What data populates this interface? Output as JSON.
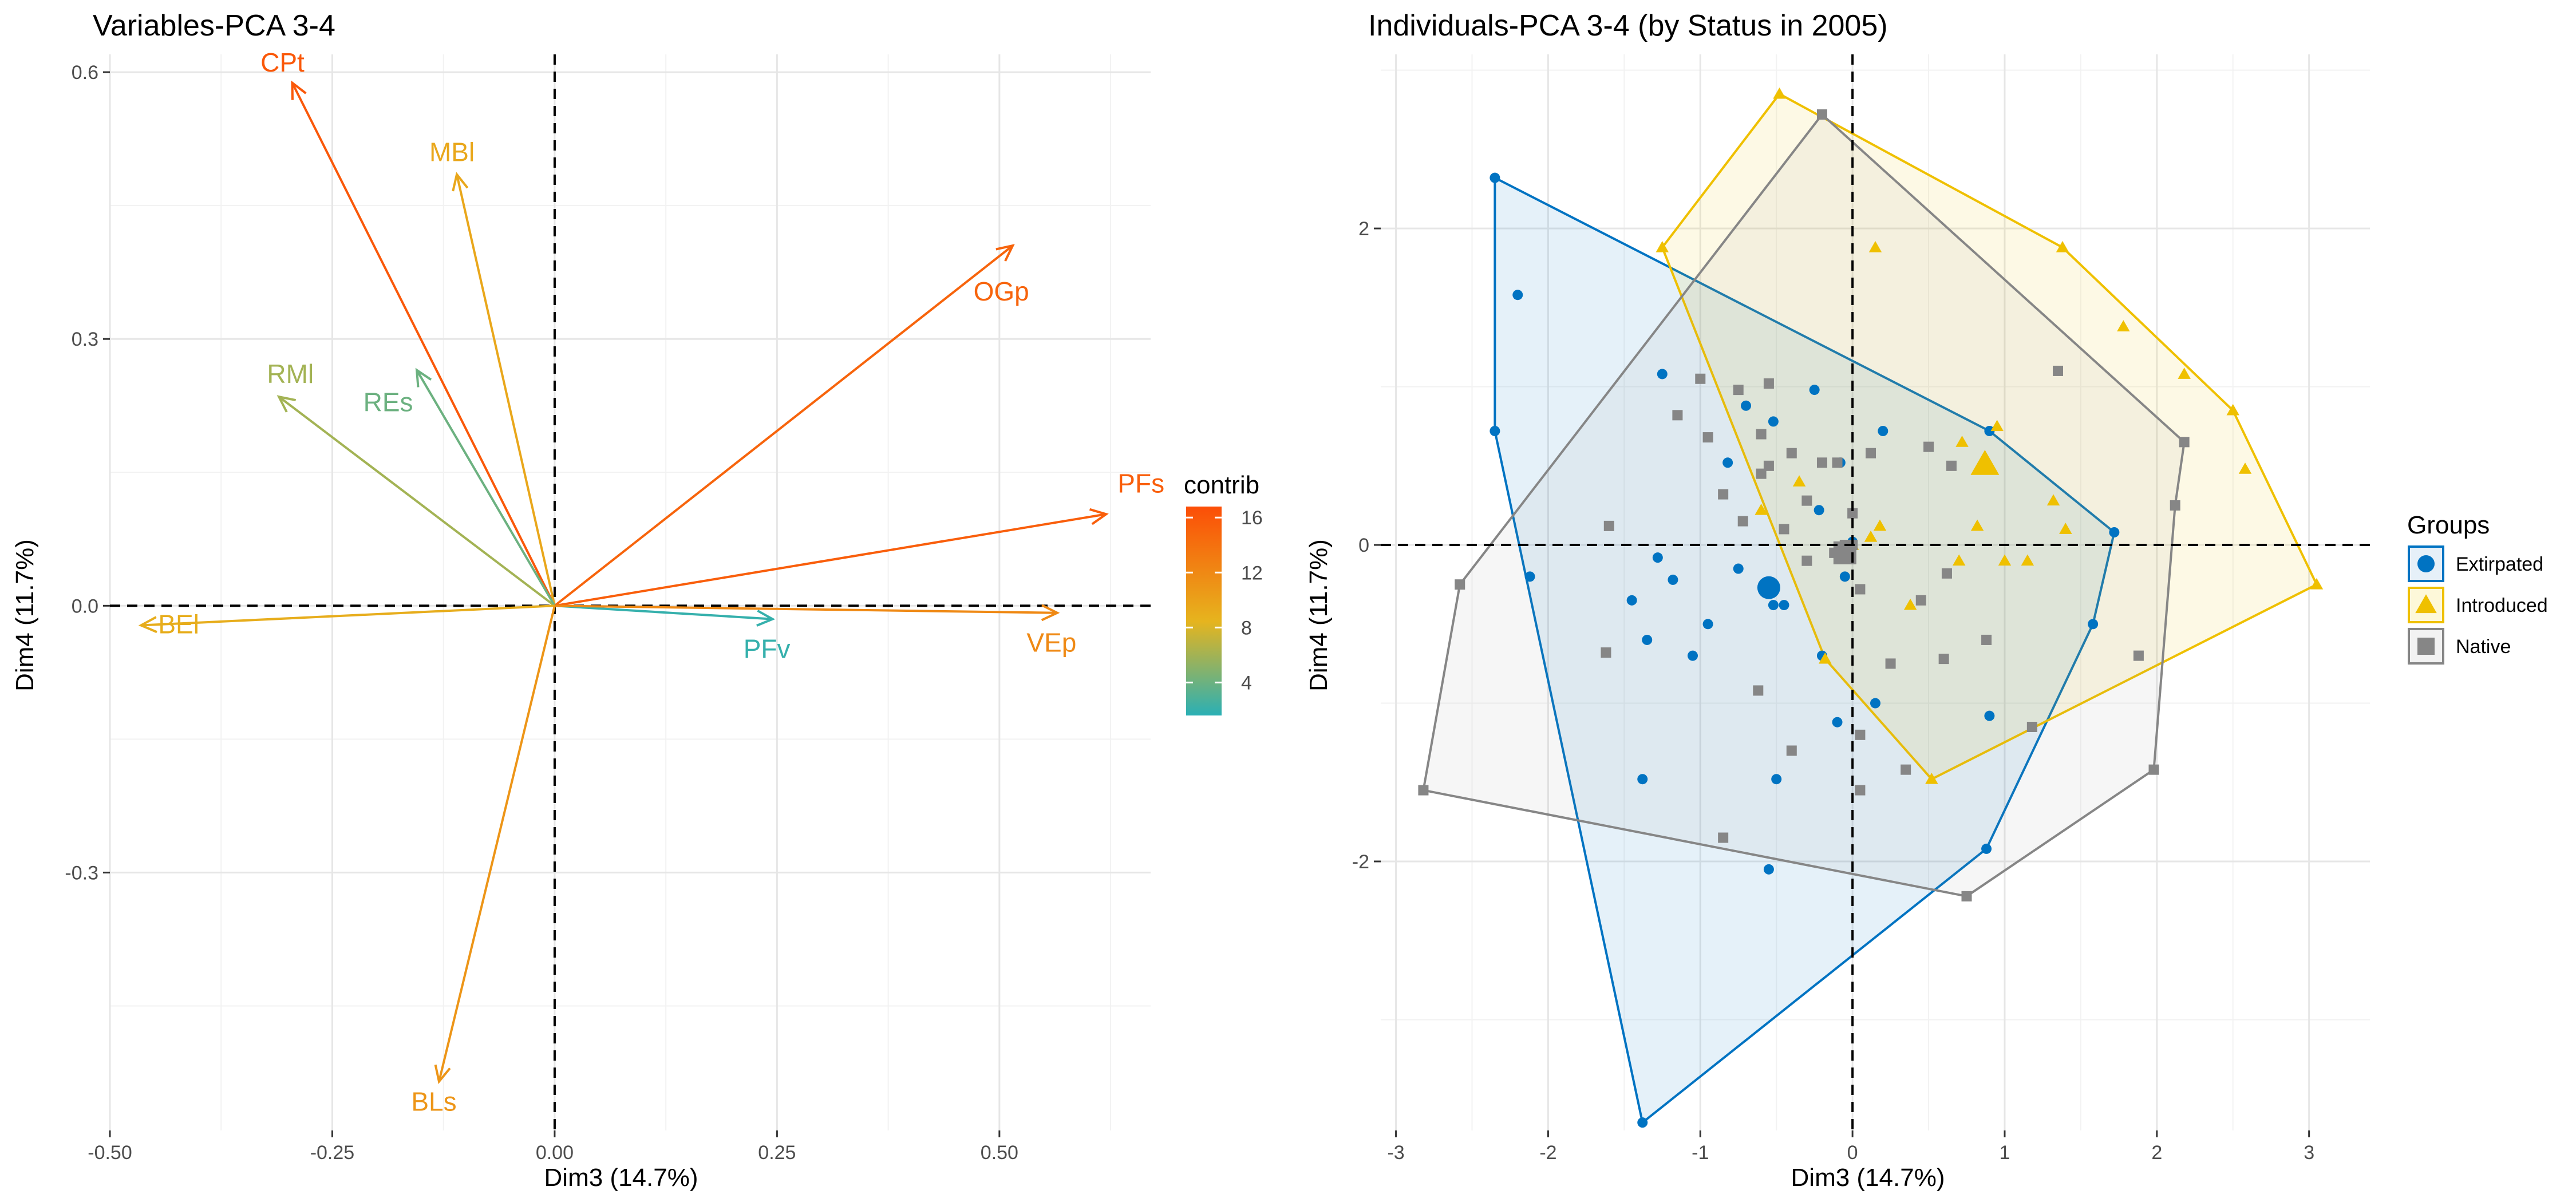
{
  "chart_data": [
    {
      "type": "scatter",
      "subtype": "pca-variables-biplot",
      "title": "Variables-PCA 3-4",
      "xlabel": "Dim3 (14.7%)",
      "ylabel": "Dim4 (11.7%)",
      "xlim": [
        -0.5,
        0.67
      ],
      "ylim": [
        -0.59,
        0.62
      ],
      "xticks": [
        {
          "v": -0.5,
          "label": "-0.50"
        },
        {
          "v": -0.25,
          "label": "-0.25"
        },
        {
          "v": 0,
          "label": "0.00"
        },
        {
          "v": 0.25,
          "label": "0.25"
        },
        {
          "v": 0.5,
          "label": "0.50"
        }
      ],
      "yticks": [
        {
          "v": 0.6,
          "label": "0.6"
        },
        {
          "v": 0.3,
          "label": "0.3"
        },
        {
          "v": 0,
          "label": "0.0"
        },
        {
          "v": -0.3,
          "label": "-0.3"
        }
      ],
      "grid": true,
      "reference_lines": {
        "x": 0,
        "y": 0,
        "style": "dashed"
      },
      "color_scale": {
        "name": "contrib",
        "ticks": [
          4,
          8,
          12,
          16
        ],
        "min": 1.6,
        "max": 16.8,
        "low": "#2ab0b5",
        "mid": "#e6b41e",
        "high": "#fc4e07"
      },
      "variables": [
        {
          "name": "CPt",
          "x": -0.295,
          "y": 0.588,
          "contrib": 16.0
        },
        {
          "name": "MBl",
          "x": -0.11,
          "y": 0.485,
          "contrib": 9.5
        },
        {
          "name": "OGp",
          "x": 0.515,
          "y": 0.405,
          "contrib": 15.0
        },
        {
          "name": "RMl",
          "x": -0.31,
          "y": 0.235,
          "contrib": 6.0
        },
        {
          "name": "REs",
          "x": -0.155,
          "y": 0.265,
          "contrib": 4.0
        },
        {
          "name": "PFs",
          "x": 0.62,
          "y": 0.103,
          "contrib": 15.5
        },
        {
          "name": "BEl",
          "x": -0.465,
          "y": -0.022,
          "contrib": 9.0
        },
        {
          "name": "PFv",
          "x": 0.245,
          "y": -0.015,
          "contrib": 2.0
        },
        {
          "name": "VEp",
          "x": 0.565,
          "y": -0.008,
          "contrib": 12.0
        },
        {
          "name": "BLs",
          "x": -0.13,
          "y": -0.535,
          "contrib": 11.0
        }
      ]
    },
    {
      "type": "scatter",
      "subtype": "pca-individuals-hulls",
      "title": "Individuals-PCA 3-4 (by Status in 2005)",
      "xlabel": "Dim3 (14.7%)",
      "ylabel": "Dim4 (11.7%)",
      "xlim": [
        -3.1,
        3.4
      ],
      "ylim": [
        -3.7,
        3.1
      ],
      "xticks": [
        {
          "v": -3,
          "label": "-3"
        },
        {
          "v": -2,
          "label": "-2"
        },
        {
          "v": -1,
          "label": "-1"
        },
        {
          "v": 0,
          "label": "0"
        },
        {
          "v": 1,
          "label": "1"
        },
        {
          "v": 2,
          "label": "2"
        },
        {
          "v": 3,
          "label": "3"
        }
      ],
      "yticks": [
        {
          "v": 2,
          "label": "2"
        },
        {
          "v": 0,
          "label": "0"
        },
        {
          "v": -2,
          "label": "-2"
        }
      ],
      "grid": true,
      "reference_lines": {
        "x": 0,
        "y": 0,
        "style": "dashed"
      },
      "legend": {
        "title": "Groups",
        "placement": "right"
      },
      "series": [
        {
          "name": "Extirpated",
          "color": "#0073c2",
          "marker": "circle",
          "hull": [
            [
              -2.35,
              2.32
            ],
            [
              0.9,
              0.72
            ],
            [
              1.72,
              0.08
            ],
            [
              1.58,
              -0.5
            ],
            [
              0.88,
              -1.92
            ],
            [
              -1.38,
              -3.65
            ],
            [
              -2.35,
              0.72
            ]
          ],
          "points": [
            [
              -2.35,
              2.32
            ],
            [
              -2.35,
              0.72
            ],
            [
              -2.2,
              1.58
            ],
            [
              -2.12,
              -0.2
            ],
            [
              -1.38,
              -3.65
            ],
            [
              -1.38,
              -1.48
            ],
            [
              -1.35,
              -0.6
            ],
            [
              -1.28,
              -0.08
            ],
            [
              -1.25,
              1.08
            ],
            [
              -1.18,
              -0.22
            ],
            [
              -1.05,
              -0.7
            ],
            [
              -1.45,
              -0.35
            ],
            [
              -0.82,
              0.52
            ],
            [
              -0.75,
              -0.15
            ],
            [
              -0.7,
              0.88
            ],
            [
              -0.52,
              0.78
            ],
            [
              -0.52,
              -0.38
            ],
            [
              -0.45,
              -0.38
            ],
            [
              -0.55,
              -2.05
            ],
            [
              -0.5,
              -1.48
            ],
            [
              -0.25,
              0.98
            ],
            [
              -0.22,
              0.22
            ],
            [
              -0.2,
              -0.7
            ],
            [
              -0.1,
              -1.12
            ],
            [
              -0.05,
              -0.2
            ],
            [
              -0.08,
              0.52
            ],
            [
              0.15,
              -1.0
            ],
            [
              0.2,
              0.72
            ],
            [
              0.9,
              0.72
            ],
            [
              1.72,
              0.08
            ],
            [
              1.58,
              -0.5
            ],
            [
              0.88,
              -1.92
            ],
            [
              0.9,
              -1.08
            ],
            [
              -0.95,
              -0.5
            ],
            [
              0.0,
              0.02
            ]
          ],
          "centroid": [
            -0.55,
            -0.27
          ]
        },
        {
          "name": "Introduced",
          "color": "#efc000",
          "marker": "triangle",
          "hull": [
            [
              -1.25,
              1.88
            ],
            [
              -0.48,
              2.85
            ],
            [
              1.38,
              1.88
            ],
            [
              2.5,
              0.85
            ],
            [
              3.05,
              -0.25
            ],
            [
              0.52,
              -1.48
            ],
            [
              -0.18,
              -0.72
            ]
          ],
          "points": [
            [
              -1.25,
              1.88
            ],
            [
              -0.48,
              2.85
            ],
            [
              0.15,
              1.88
            ],
            [
              1.38,
              1.88
            ],
            [
              1.78,
              1.38
            ],
            [
              2.18,
              1.08
            ],
            [
              2.5,
              0.85
            ],
            [
              2.58,
              0.48
            ],
            [
              3.05,
              -0.25
            ],
            [
              0.52,
              -1.48
            ],
            [
              -0.18,
              -0.72
            ],
            [
              0.95,
              0.75
            ],
            [
              0.72,
              0.65
            ],
            [
              0.85,
              0.5
            ],
            [
              1.32,
              0.28
            ],
            [
              1.4,
              0.1
            ],
            [
              1.0,
              -0.1
            ],
            [
              0.7,
              -0.1
            ],
            [
              0.82,
              0.12
            ],
            [
              0.18,
              0.12
            ],
            [
              0.12,
              0.05
            ],
            [
              -0.6,
              0.22
            ],
            [
              -0.35,
              0.4
            ],
            [
              0.38,
              -0.38
            ],
            [
              0.0,
              0.0
            ],
            [
              1.15,
              -0.1
            ]
          ],
          "centroid": [
            0.87,
            0.51
          ]
        },
        {
          "name": "Native",
          "color": "#868686",
          "marker": "square",
          "hull": [
            [
              -0.2,
              2.72
            ],
            [
              2.18,
              0.65
            ],
            [
              2.12,
              0.25
            ],
            [
              1.98,
              -1.42
            ],
            [
              0.75,
              -2.22
            ],
            [
              -2.82,
              -1.55
            ],
            [
              -2.58,
              -0.25
            ]
          ],
          "points": [
            [
              -0.2,
              2.72
            ],
            [
              2.18,
              0.65
            ],
            [
              2.12,
              0.25
            ],
            [
              1.98,
              -1.42
            ],
            [
              0.75,
              -2.22
            ],
            [
              -2.82,
              -1.55
            ],
            [
              -2.58,
              -0.25
            ],
            [
              -1.6,
              0.12
            ],
            [
              -1.62,
              -0.68
            ],
            [
              -1.0,
              1.05
            ],
            [
              -1.15,
              0.82
            ],
            [
              -0.95,
              0.68
            ],
            [
              -0.75,
              0.98
            ],
            [
              -0.55,
              1.02
            ],
            [
              -0.6,
              0.7
            ],
            [
              -0.55,
              0.5
            ],
            [
              -0.4,
              0.58
            ],
            [
              -0.3,
              0.28
            ],
            [
              -0.2,
              0.52
            ],
            [
              -0.1,
              0.52
            ],
            [
              0.0,
              0.2
            ],
            [
              0.12,
              0.58
            ],
            [
              0.5,
              0.62
            ],
            [
              0.65,
              0.5
            ],
            [
              -0.85,
              0.32
            ],
            [
              -0.72,
              0.15
            ],
            [
              -0.45,
              0.1
            ],
            [
              -0.3,
              -0.1
            ],
            [
              -0.12,
              -0.05
            ],
            [
              0.05,
              -0.28
            ],
            [
              0.45,
              -0.35
            ],
            [
              0.62,
              -0.18
            ],
            [
              0.88,
              -0.6
            ],
            [
              0.25,
              -0.75
            ],
            [
              -0.62,
              -0.92
            ],
            [
              -0.4,
              -1.3
            ],
            [
              -0.85,
              -1.85
            ],
            [
              0.05,
              -1.2
            ],
            [
              0.05,
              -1.55
            ],
            [
              0.35,
              -1.42
            ],
            [
              0.6,
              -0.72
            ],
            [
              1.18,
              -1.15
            ],
            [
              1.35,
              1.1
            ],
            [
              1.88,
              -0.7
            ],
            [
              -0.6,
              0.45
            ],
            [
              0.0,
              0.0
            ],
            [
              -0.05,
              0.0
            ]
          ],
          "centroid": [
            -0.05,
            -0.05
          ]
        }
      ]
    }
  ]
}
